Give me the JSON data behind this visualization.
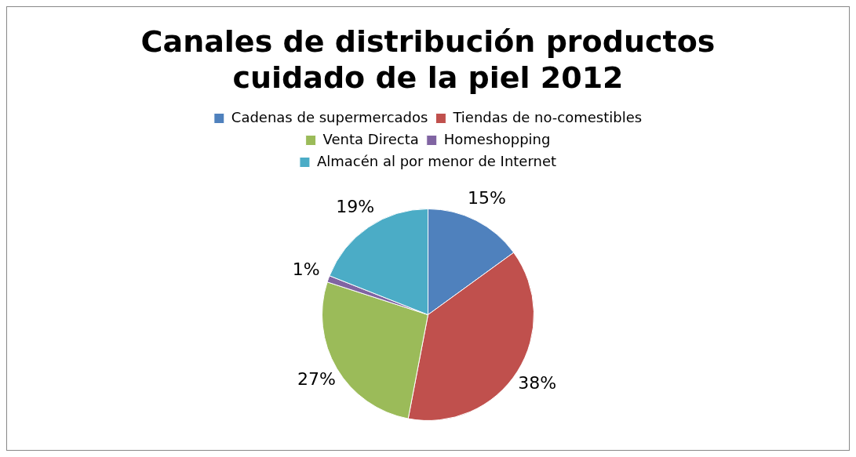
{
  "chart_data": {
    "type": "pie",
    "title": "Canales de distribución productos cuidado de la piel 2012",
    "categories": [
      "Cadenas de supermercados",
      "Tiendas de no-comestibles",
      "Venta Directa",
      "Homeshopping",
      "Almacén al por menor de Internet"
    ],
    "values": [
      15,
      38,
      27,
      1,
      19
    ],
    "colors": [
      "#4f81bd",
      "#c0504d",
      "#9bbb59",
      "#8064a2",
      "#4bacc6"
    ],
    "value_labels": [
      "15%",
      "38%",
      "27%",
      "1%",
      "19%"
    ],
    "legend": "top"
  }
}
